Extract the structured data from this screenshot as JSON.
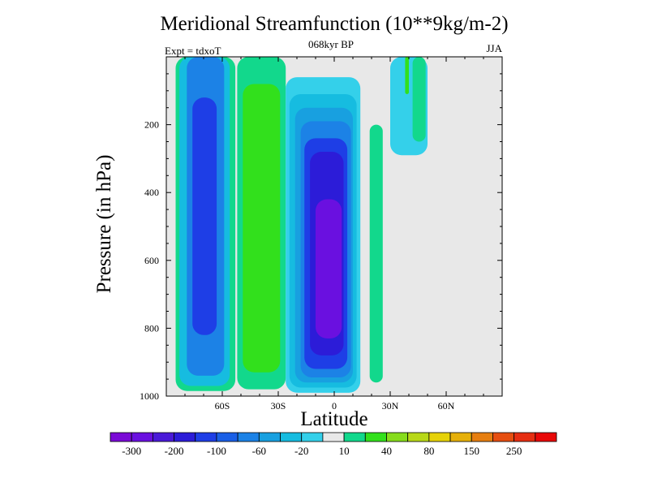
{
  "chart_data": {
    "type": "heatmap",
    "title": "Meridional Streamfunction (10**9kg/m-2)",
    "subtitle": "068kyr BP",
    "left_note": "Expt = tdxoT",
    "right_note": "JJA",
    "xlabel": "Latitude",
    "ylabel": "Pressure (in hPa)",
    "x_ticks": [
      "60S",
      "30S",
      "0",
      "30N",
      "60N"
    ],
    "x_tick_values": [
      -60,
      -30,
      0,
      30,
      60
    ],
    "xlim": [
      -90,
      90
    ],
    "y_ticks": [
      "200",
      "400",
      "600",
      "800",
      "1000"
    ],
    "y_tick_values": [
      200,
      400,
      600,
      800,
      1000
    ],
    "ylim": [
      0,
      1000
    ],
    "y_reversed": true,
    "colorbar": {
      "levels": [
        -300,
        -250,
        -200,
        -150,
        -100,
        -80,
        -60,
        -40,
        -20,
        -10,
        10,
        20,
        40,
        60,
        80,
        100,
        150,
        200,
        250,
        300
      ],
      "labels": [
        "-300",
        "-200",
        "-100",
        "-60",
        "-20",
        "10",
        "40",
        "80",
        "150",
        "250"
      ],
      "colors": [
        "#7a0ad6",
        "#6a10e0",
        "#4a1ad8",
        "#2c1cd8",
        "#1e3ee6",
        "#1a5fe6",
        "#1c82e6",
        "#18a0e0",
        "#16bce0",
        "#34d0ea",
        "#e8e8e8",
        "#12d88c",
        "#32e01c",
        "#86dc1c",
        "#b8d818",
        "#e6d208",
        "#e6b00a",
        "#e67e10",
        "#e64e10",
        "#e62e12",
        "#e80808"
      ]
    },
    "fields": [
      {
        "name": "southern-cell",
        "level_index": 11,
        "lat_min": -85,
        "lat_max": -53,
        "p_min": 0,
        "p_max": 985
      },
      {
        "name": "southern-cell",
        "level_index": 8,
        "lat_min": -83,
        "lat_max": -56,
        "p_min": 0,
        "p_max": 970
      },
      {
        "name": "southern-cell",
        "level_index": 6,
        "lat_min": -79,
        "lat_max": -59,
        "p_min": 0,
        "p_max": 940
      },
      {
        "name": "southern-cell",
        "level_index": 4,
        "lat_min": -76,
        "lat_max": -63,
        "p_min": 120,
        "p_max": 820
      },
      {
        "name": "southern-positive",
        "level_index": 11,
        "lat_min": -52,
        "lat_max": -26,
        "p_min": 0,
        "p_max": 980
      },
      {
        "name": "southern-positive",
        "level_index": 12,
        "lat_min": -49,
        "lat_max": -29,
        "p_min": 80,
        "p_max": 930
      },
      {
        "name": "tropical-cell",
        "level_index": 9,
        "lat_min": -26,
        "lat_max": 14,
        "p_min": 60,
        "p_max": 990
      },
      {
        "name": "tropical-cell",
        "level_index": 8,
        "lat_min": -24,
        "lat_max": 12,
        "p_min": 110,
        "p_max": 975
      },
      {
        "name": "tropical-cell",
        "level_index": 7,
        "lat_min": -21,
        "lat_max": 10,
        "p_min": 150,
        "p_max": 960
      },
      {
        "name": "tropical-cell",
        "level_index": 6,
        "lat_min": -18,
        "lat_max": 9,
        "p_min": 190,
        "p_max": 945
      },
      {
        "name": "tropical-cell",
        "level_index": 4,
        "lat_min": -16,
        "lat_max": 7,
        "p_min": 240,
        "p_max": 920
      },
      {
        "name": "tropical-cell",
        "level_index": 3,
        "lat_min": -13,
        "lat_max": 5,
        "p_min": 280,
        "p_max": 880
      },
      {
        "name": "tropical-cell",
        "level_index": 1,
        "lat_min": -10,
        "lat_max": 4,
        "p_min": 420,
        "p_max": 830
      },
      {
        "name": "northern-positive",
        "level_index": 11,
        "lat_min": 19,
        "lat_max": 26,
        "p_min": 200,
        "p_max": 960
      },
      {
        "name": "northern-upper-cell",
        "level_index": 9,
        "lat_min": 30,
        "lat_max": 50,
        "p_min": 0,
        "p_max": 290
      },
      {
        "name": "northern-upper-cell",
        "level_index": 11,
        "lat_min": 42,
        "lat_max": 49,
        "p_min": 0,
        "p_max": 250
      },
      {
        "name": "northern-upper-cell",
        "level_index": 12,
        "lat_min": 38,
        "lat_max": 40,
        "p_min": 0,
        "p_max": 110
      }
    ]
  }
}
